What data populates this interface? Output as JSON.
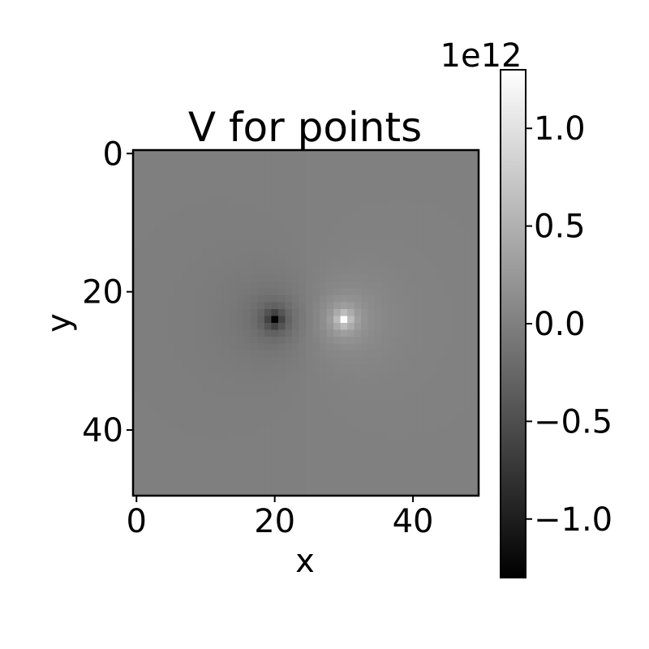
{
  "chart_data": {
    "type": "heatmap",
    "title": "V for points",
    "xlabel": "x",
    "ylabel": "y",
    "grid_shape": [
      50,
      50
    ],
    "xlim": [
      -0.5,
      49.5
    ],
    "ylim": [
      49.5,
      -0.5
    ],
    "x_ticks": [
      0,
      20,
      40
    ],
    "y_ticks": [
      0,
      20,
      40
    ],
    "x_tick_labels": [
      "0",
      "20",
      "40"
    ],
    "y_tick_labels": [
      "0",
      "20",
      "40"
    ],
    "colormap": "gray",
    "color_min": "#000000",
    "color_max": "#ffffff",
    "sources": [
      {
        "x": 20,
        "y": 24,
        "sign": -1,
        "peak": -1300000000000.0
      },
      {
        "x": 30,
        "y": 24,
        "sign": 1,
        "peak": 1300000000000.0
      }
    ],
    "colorbar": {
      "range": [
        -1.3,
        1.3
      ],
      "ticks": [
        1.0,
        0.5,
        0.0,
        -0.5,
        -1.0
      ],
      "tick_labels": [
        "1.0",
        "0.5",
        "0.0",
        "−0.5",
        "−1.0"
      ],
      "offset_label": "1e12"
    }
  }
}
